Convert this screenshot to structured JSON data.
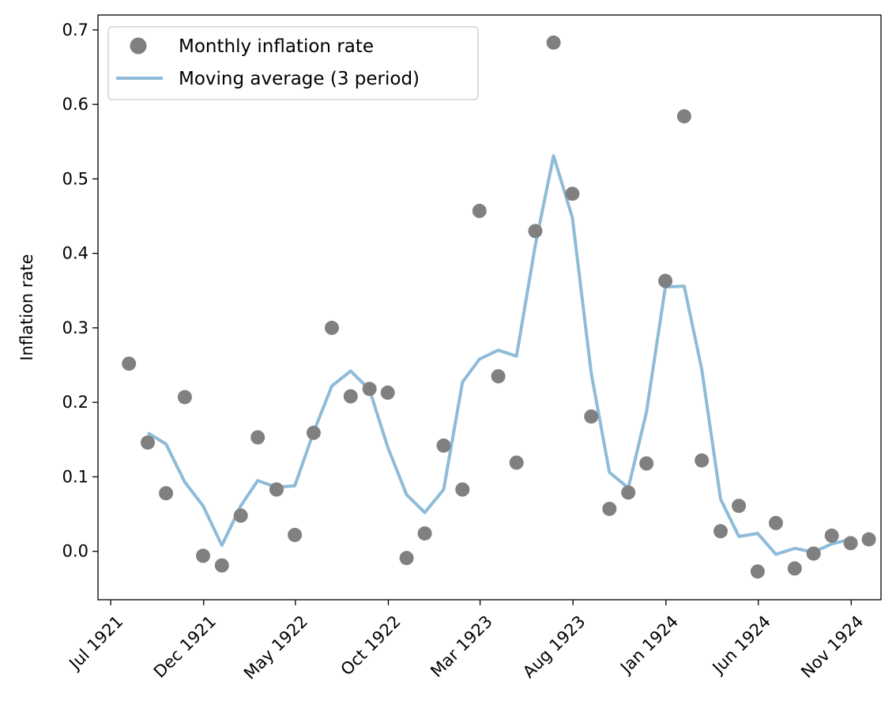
{
  "chart_data": {
    "type": "line",
    "ylabel": "Inflation rate",
    "xlabel": "",
    "xlim": [
      "1921-06-10",
      "1924-12-20"
    ],
    "ylim": [
      -0.065,
      0.72
    ],
    "x_ticks": [
      "1921-07-01",
      "1921-12-01",
      "1922-05-01",
      "1922-10-01",
      "1923-03-01",
      "1923-08-01",
      "1924-01-01",
      "1924-06-01",
      "1924-11-01"
    ],
    "x_tick_labels": [
      "Jul 1921",
      "Dec 1921",
      "May 1922",
      "Oct 1922",
      "Mar 1923",
      "Aug 1923",
      "Jan 1924",
      "Jun 1924",
      "Nov 1924"
    ],
    "y_ticks": [
      0.0,
      0.1,
      0.2,
      0.3,
      0.4,
      0.5,
      0.6,
      0.7
    ],
    "y_tick_labels": [
      "0.0",
      "0.1",
      "0.2",
      "0.3",
      "0.4",
      "0.5",
      "0.6",
      "0.7"
    ],
    "grid": false,
    "legend_position": "upper-left",
    "series": [
      {
        "name": "Monthly inflation rate",
        "kind": "scatter",
        "color": "#808080",
        "x": [
          "1921-07-31",
          "1921-08-31",
          "1921-09-30",
          "1921-10-31",
          "1921-11-30",
          "1921-12-31",
          "1922-01-31",
          "1922-02-28",
          "1922-03-31",
          "1922-04-30",
          "1922-05-31",
          "1922-06-30",
          "1922-07-31",
          "1922-08-31",
          "1922-09-30",
          "1922-10-31",
          "1922-11-30",
          "1922-12-31",
          "1923-01-31",
          "1923-02-28",
          "1923-03-31",
          "1923-04-30",
          "1923-05-31",
          "1923-06-30",
          "1923-07-31",
          "1923-08-31",
          "1923-09-30",
          "1923-10-31",
          "1923-11-30",
          "1923-12-31",
          "1924-01-31",
          "1924-02-29",
          "1924-03-31",
          "1924-04-30",
          "1924-05-31",
          "1924-06-30",
          "1924-07-31",
          "1924-08-31",
          "1924-09-30",
          "1924-10-31",
          "1924-11-30"
        ],
        "y": [
          0.252,
          0.146,
          0.078,
          0.207,
          -0.006,
          -0.019,
          0.048,
          0.153,
          0.083,
          0.022,
          0.159,
          0.3,
          0.208,
          0.218,
          0.213,
          -0.009,
          0.024,
          0.142,
          0.083,
          0.457,
          0.235,
          0.119,
          0.43,
          0.683,
          0.48,
          0.181,
          0.057,
          0.079,
          0.118,
          0.363,
          0.584,
          0.122,
          0.027,
          0.061,
          -0.027,
          0.038,
          -0.023,
          -0.003,
          0.021,
          0.011,
          0.016
        ]
      },
      {
        "name": "Moving average (3 period)",
        "kind": "line",
        "color": "#8ebbd9",
        "x": [
          "1921-08-31",
          "1921-09-30",
          "1921-10-31",
          "1921-11-30",
          "1921-12-31",
          "1922-01-31",
          "1922-02-28",
          "1922-03-31",
          "1922-04-30",
          "1922-05-31",
          "1922-06-30",
          "1922-07-31",
          "1922-08-31",
          "1922-09-30",
          "1922-10-31",
          "1922-11-30",
          "1922-12-31",
          "1923-01-31",
          "1923-02-28",
          "1923-03-31",
          "1923-04-30",
          "1923-05-31",
          "1923-06-30",
          "1923-07-31",
          "1923-08-31",
          "1923-09-30",
          "1923-10-31",
          "1923-11-30",
          "1923-12-31",
          "1924-01-31",
          "1924-02-29",
          "1924-03-31",
          "1924-04-30",
          "1924-05-31",
          "1924-06-30",
          "1924-07-31",
          "1924-08-31",
          "1924-09-30",
          "1924-10-31"
        ],
        "y": [
          0.159,
          0.144,
          0.093,
          0.061,
          0.008,
          0.061,
          0.095,
          0.086,
          0.088,
          0.16,
          0.222,
          0.242,
          0.217,
          0.14,
          0.076,
          0.052,
          0.083,
          0.227,
          0.258,
          0.27,
          0.262,
          0.411,
          0.531,
          0.448,
          0.239,
          0.106,
          0.085,
          0.187,
          0.355,
          0.356,
          0.244,
          0.07,
          0.02,
          0.024,
          -0.004,
          0.004,
          -0.001,
          0.01,
          0.016
        ]
      }
    ]
  }
}
